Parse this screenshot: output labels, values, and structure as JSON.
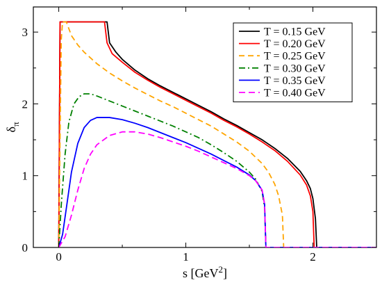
{
  "chart_data": {
    "type": "line",
    "title": "",
    "xlabel": {
      "main": "s [GeV",
      "sup": "2",
      "tail": "]"
    },
    "ylabel": {
      "main": "δ",
      "sub": "π"
    },
    "xlim": [
      -0.2,
      2.5
    ],
    "ylim": [
      0,
      3.35
    ],
    "xticks": [
      0,
      1,
      2
    ],
    "xtick_labels": [
      "0",
      "1",
      "2"
    ],
    "yticks": [
      0,
      1,
      2,
      3
    ],
    "ytick_labels": [
      "0",
      "1",
      "2",
      "3"
    ],
    "grid": false,
    "legend_position": "top-right",
    "series": [
      {
        "name": "T = 0.15 GeV",
        "color": "#000000",
        "dash": "solid",
        "points": [
          [
            0,
            0
          ],
          [
            0.01,
            3.1416
          ],
          [
            0.38,
            3.1416
          ],
          [
            0.4,
            2.85
          ],
          [
            0.45,
            2.72
          ],
          [
            0.5,
            2.62
          ],
          [
            0.6,
            2.47
          ],
          [
            0.7,
            2.35
          ],
          [
            0.8,
            2.25
          ],
          [
            0.9,
            2.16
          ],
          [
            1.0,
            2.07
          ],
          [
            1.1,
            1.98
          ],
          [
            1.2,
            1.89
          ],
          [
            1.3,
            1.79
          ],
          [
            1.4,
            1.7
          ],
          [
            1.5,
            1.6
          ],
          [
            1.6,
            1.5
          ],
          [
            1.7,
            1.38
          ],
          [
            1.8,
            1.24
          ],
          [
            1.9,
            1.06
          ],
          [
            1.95,
            0.93
          ],
          [
            1.98,
            0.82
          ],
          [
            2.0,
            0.68
          ],
          [
            2.02,
            0.4
          ],
          [
            2.03,
            0
          ],
          [
            2.5,
            0
          ]
        ]
      },
      {
        "name": "T = 0.20 GeV",
        "color": "#ff0000",
        "dash": "solid",
        "points": [
          [
            0,
            0
          ],
          [
            0.01,
            3.1416
          ],
          [
            0.36,
            3.1416
          ],
          [
            0.38,
            2.85
          ],
          [
            0.42,
            2.7
          ],
          [
            0.5,
            2.58
          ],
          [
            0.6,
            2.44
          ],
          [
            0.7,
            2.33
          ],
          [
            0.8,
            2.23
          ],
          [
            0.9,
            2.14
          ],
          [
            1.0,
            2.05
          ],
          [
            1.1,
            1.96
          ],
          [
            1.2,
            1.87
          ],
          [
            1.3,
            1.77
          ],
          [
            1.4,
            1.68
          ],
          [
            1.5,
            1.58
          ],
          [
            1.6,
            1.47
          ],
          [
            1.7,
            1.35
          ],
          [
            1.8,
            1.2
          ],
          [
            1.9,
            1.01
          ],
          [
            1.95,
            0.87
          ],
          [
            1.98,
            0.72
          ],
          [
            2.0,
            0.5
          ],
          [
            2.01,
            0
          ],
          [
            2.5,
            0
          ]
        ]
      },
      {
        "name": "T = 0.25 GeV",
        "color": "#ffa500",
        "dash": "8,5",
        "points": [
          [
            0.0,
            0
          ],
          [
            0.01,
            1.5
          ],
          [
            0.02,
            2.9
          ],
          [
            0.03,
            3.1416
          ],
          [
            0.06,
            3.14
          ],
          [
            0.1,
            2.95
          ],
          [
            0.15,
            2.82
          ],
          [
            0.2,
            2.72
          ],
          [
            0.3,
            2.56
          ],
          [
            0.4,
            2.43
          ],
          [
            0.5,
            2.32
          ],
          [
            0.6,
            2.22
          ],
          [
            0.7,
            2.13
          ],
          [
            0.8,
            2.04
          ],
          [
            0.9,
            1.96
          ],
          [
            1.0,
            1.87
          ],
          [
            1.1,
            1.78
          ],
          [
            1.2,
            1.69
          ],
          [
            1.3,
            1.58
          ],
          [
            1.4,
            1.47
          ],
          [
            1.5,
            1.34
          ],
          [
            1.6,
            1.17
          ],
          [
            1.65,
            1.05
          ],
          [
            1.7,
            0.88
          ],
          [
            1.73,
            0.72
          ],
          [
            1.76,
            0.45
          ],
          [
            1.77,
            0
          ],
          [
            2.5,
            0
          ]
        ]
      },
      {
        "name": "T = 0.30 GeV",
        "color": "#008000",
        "dash": "9,4,2,4",
        "points": [
          [
            0.0,
            0
          ],
          [
            0.02,
            0.6
          ],
          [
            0.05,
            1.3
          ],
          [
            0.08,
            1.75
          ],
          [
            0.12,
            2.0
          ],
          [
            0.16,
            2.1
          ],
          [
            0.2,
            2.14
          ],
          [
            0.25,
            2.14
          ],
          [
            0.3,
            2.11
          ],
          [
            0.4,
            2.04
          ],
          [
            0.5,
            1.97
          ],
          [
            0.6,
            1.9
          ],
          [
            0.7,
            1.83
          ],
          [
            0.8,
            1.76
          ],
          [
            0.9,
            1.69
          ],
          [
            1.0,
            1.61
          ],
          [
            1.1,
            1.53
          ],
          [
            1.2,
            1.43
          ],
          [
            1.3,
            1.32
          ],
          [
            1.4,
            1.2
          ],
          [
            1.5,
            1.05
          ],
          [
            1.55,
            0.95
          ],
          [
            1.6,
            0.78
          ],
          [
            1.62,
            0.55
          ],
          [
            1.63,
            0
          ],
          [
            2.5,
            0
          ]
        ]
      },
      {
        "name": "T = 0.35 GeV",
        "color": "#0000ff",
        "dash": "solid",
        "points": [
          [
            0.0,
            0
          ],
          [
            0.03,
            0.18
          ],
          [
            0.06,
            0.55
          ],
          [
            0.1,
            1.05
          ],
          [
            0.15,
            1.45
          ],
          [
            0.2,
            1.67
          ],
          [
            0.25,
            1.77
          ],
          [
            0.3,
            1.81
          ],
          [
            0.4,
            1.81
          ],
          [
            0.5,
            1.78
          ],
          [
            0.6,
            1.73
          ],
          [
            0.7,
            1.67
          ],
          [
            0.8,
            1.6
          ],
          [
            0.9,
            1.53
          ],
          [
            1.0,
            1.46
          ],
          [
            1.1,
            1.38
          ],
          [
            1.2,
            1.3
          ],
          [
            1.3,
            1.21
          ],
          [
            1.4,
            1.12
          ],
          [
            1.5,
            1.01
          ],
          [
            1.55,
            0.93
          ],
          [
            1.6,
            0.8
          ],
          [
            1.62,
            0.6
          ],
          [
            1.63,
            0
          ],
          [
            2.5,
            0
          ]
        ]
      },
      {
        "name": "T = 0.40 GeV",
        "color": "#ff00ff",
        "dash": "9,5",
        "points": [
          [
            0.0,
            0
          ],
          [
            0.05,
            0.15
          ],
          [
            0.1,
            0.45
          ],
          [
            0.15,
            0.8
          ],
          [
            0.2,
            1.1
          ],
          [
            0.25,
            1.3
          ],
          [
            0.3,
            1.43
          ],
          [
            0.4,
            1.56
          ],
          [
            0.5,
            1.61
          ],
          [
            0.6,
            1.61
          ],
          [
            0.7,
            1.58
          ],
          [
            0.8,
            1.53
          ],
          [
            0.9,
            1.47
          ],
          [
            1.0,
            1.41
          ],
          [
            1.1,
            1.34
          ],
          [
            1.2,
            1.26
          ],
          [
            1.3,
            1.18
          ],
          [
            1.4,
            1.1
          ],
          [
            1.5,
            1.0
          ],
          [
            1.55,
            0.93
          ],
          [
            1.6,
            0.8
          ],
          [
            1.62,
            0.6
          ],
          [
            1.63,
            0
          ],
          [
            2.5,
            0
          ]
        ]
      }
    ]
  }
}
